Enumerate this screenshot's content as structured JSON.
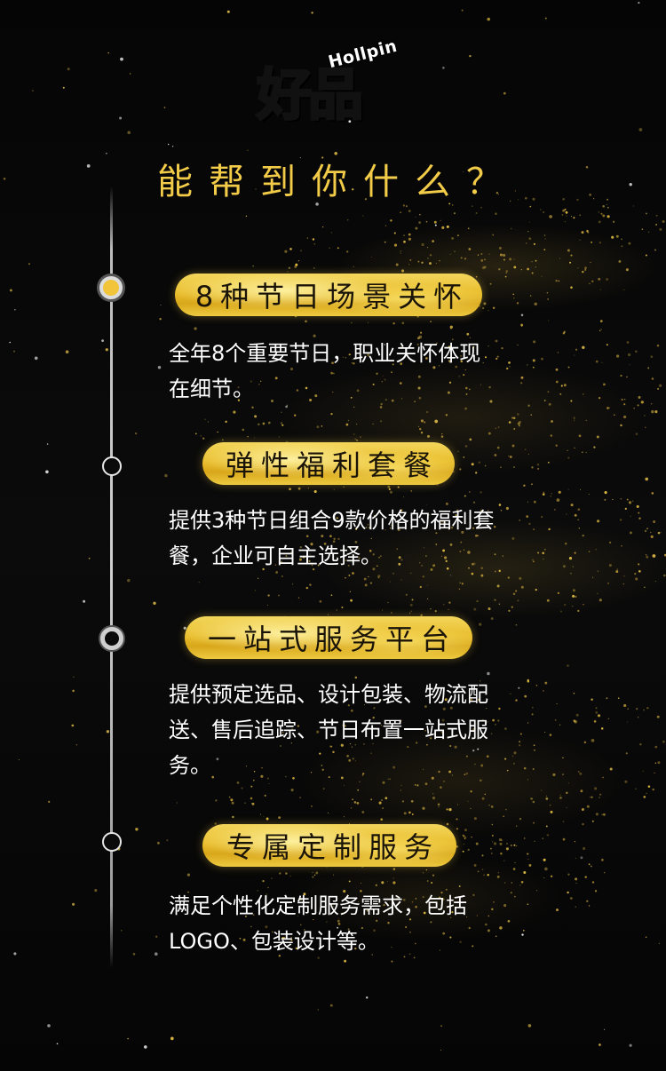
{
  "logo": {
    "brand": "Hollpin",
    "mark": "好品"
  },
  "title": "能帮到你什么？",
  "colors": {
    "gold": "#f2cb48",
    "background": "#000000",
    "text": "#ffffff"
  },
  "sections": [
    {
      "heading": "8种节日场景关怀",
      "body": "全年8个重要节日，职业关怀体现在细节。"
    },
    {
      "heading": "弹性福利套餐",
      "body": "提供3种节日组合9款价格的福利套餐，企业可自主选择。"
    },
    {
      "heading": "一站式服务平台",
      "body": "提供预定选品、设计包装、物流配送、售后追踪、节日布置一站式服务。"
    },
    {
      "heading": "专属定制服务",
      "body": "满足个性化定制服务需求，包括LOGO、包装设计等。"
    }
  ]
}
